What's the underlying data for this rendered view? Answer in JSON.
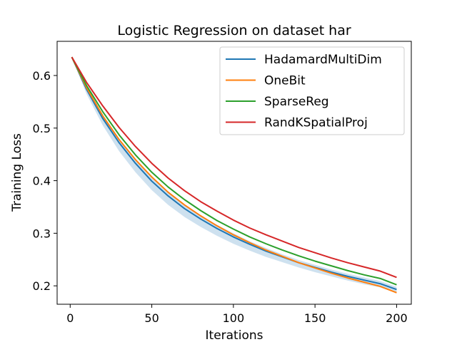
{
  "chart_data": {
    "type": "line",
    "title": "Logistic Regression on dataset har",
    "xlabel": "Iterations",
    "ylabel": "Training Loss",
    "xlim": [
      -8,
      209
    ],
    "ylim": [
      0.165,
      0.665
    ],
    "xticks": [
      0,
      50,
      100,
      150,
      200
    ],
    "yticks": [
      0.2,
      0.3,
      0.4,
      0.5,
      0.6
    ],
    "grid": false,
    "legend_position": "top-right",
    "x": [
      1,
      10,
      20,
      30,
      40,
      50,
      60,
      70,
      80,
      90,
      100,
      110,
      120,
      130,
      140,
      150,
      160,
      170,
      180,
      190,
      200
    ],
    "series": [
      {
        "name": "HadamardMultiDim",
        "color": "#1f77b4",
        "values": [
          0.635,
          0.574,
          0.518,
          0.472,
          0.433,
          0.399,
          0.371,
          0.347,
          0.327,
          0.309,
          0.293,
          0.279,
          0.266,
          0.255,
          0.244,
          0.235,
          0.226,
          0.218,
          0.211,
          0.204,
          0.193
        ],
        "band_lower": [
          0.635,
          0.565,
          0.505,
          0.456,
          0.416,
          0.382,
          0.354,
          0.331,
          0.312,
          0.295,
          0.28,
          0.267,
          0.255,
          0.245,
          0.235,
          0.226,
          0.218,
          0.21,
          0.203,
          0.197,
          0.186
        ],
        "band_upper": [
          0.635,
          0.578,
          0.525,
          0.48,
          0.441,
          0.408,
          0.379,
          0.355,
          0.334,
          0.316,
          0.3,
          0.285,
          0.272,
          0.26,
          0.249,
          0.24,
          0.231,
          0.223,
          0.216,
          0.209,
          0.198
        ]
      },
      {
        "name": "OneBit",
        "color": "#ff7f0e",
        "values": [
          0.635,
          0.577,
          0.523,
          0.478,
          0.44,
          0.407,
          0.378,
          0.354,
          0.333,
          0.314,
          0.297,
          0.282,
          0.268,
          0.256,
          0.244,
          0.234,
          0.224,
          0.215,
          0.207,
          0.199,
          0.187
        ]
      },
      {
        "name": "SparseReg",
        "color": "#2ca02c",
        "values": [
          0.635,
          0.581,
          0.531,
          0.487,
          0.449,
          0.416,
          0.388,
          0.364,
          0.343,
          0.324,
          0.308,
          0.293,
          0.28,
          0.268,
          0.257,
          0.247,
          0.238,
          0.229,
          0.221,
          0.214,
          0.202
        ]
      },
      {
        "name": "RandKSpatialProj",
        "color": "#d62728",
        "values": [
          0.635,
          0.587,
          0.542,
          0.501,
          0.465,
          0.433,
          0.405,
          0.381,
          0.36,
          0.342,
          0.325,
          0.31,
          0.297,
          0.285,
          0.273,
          0.263,
          0.253,
          0.244,
          0.236,
          0.228,
          0.216
        ]
      }
    ]
  }
}
